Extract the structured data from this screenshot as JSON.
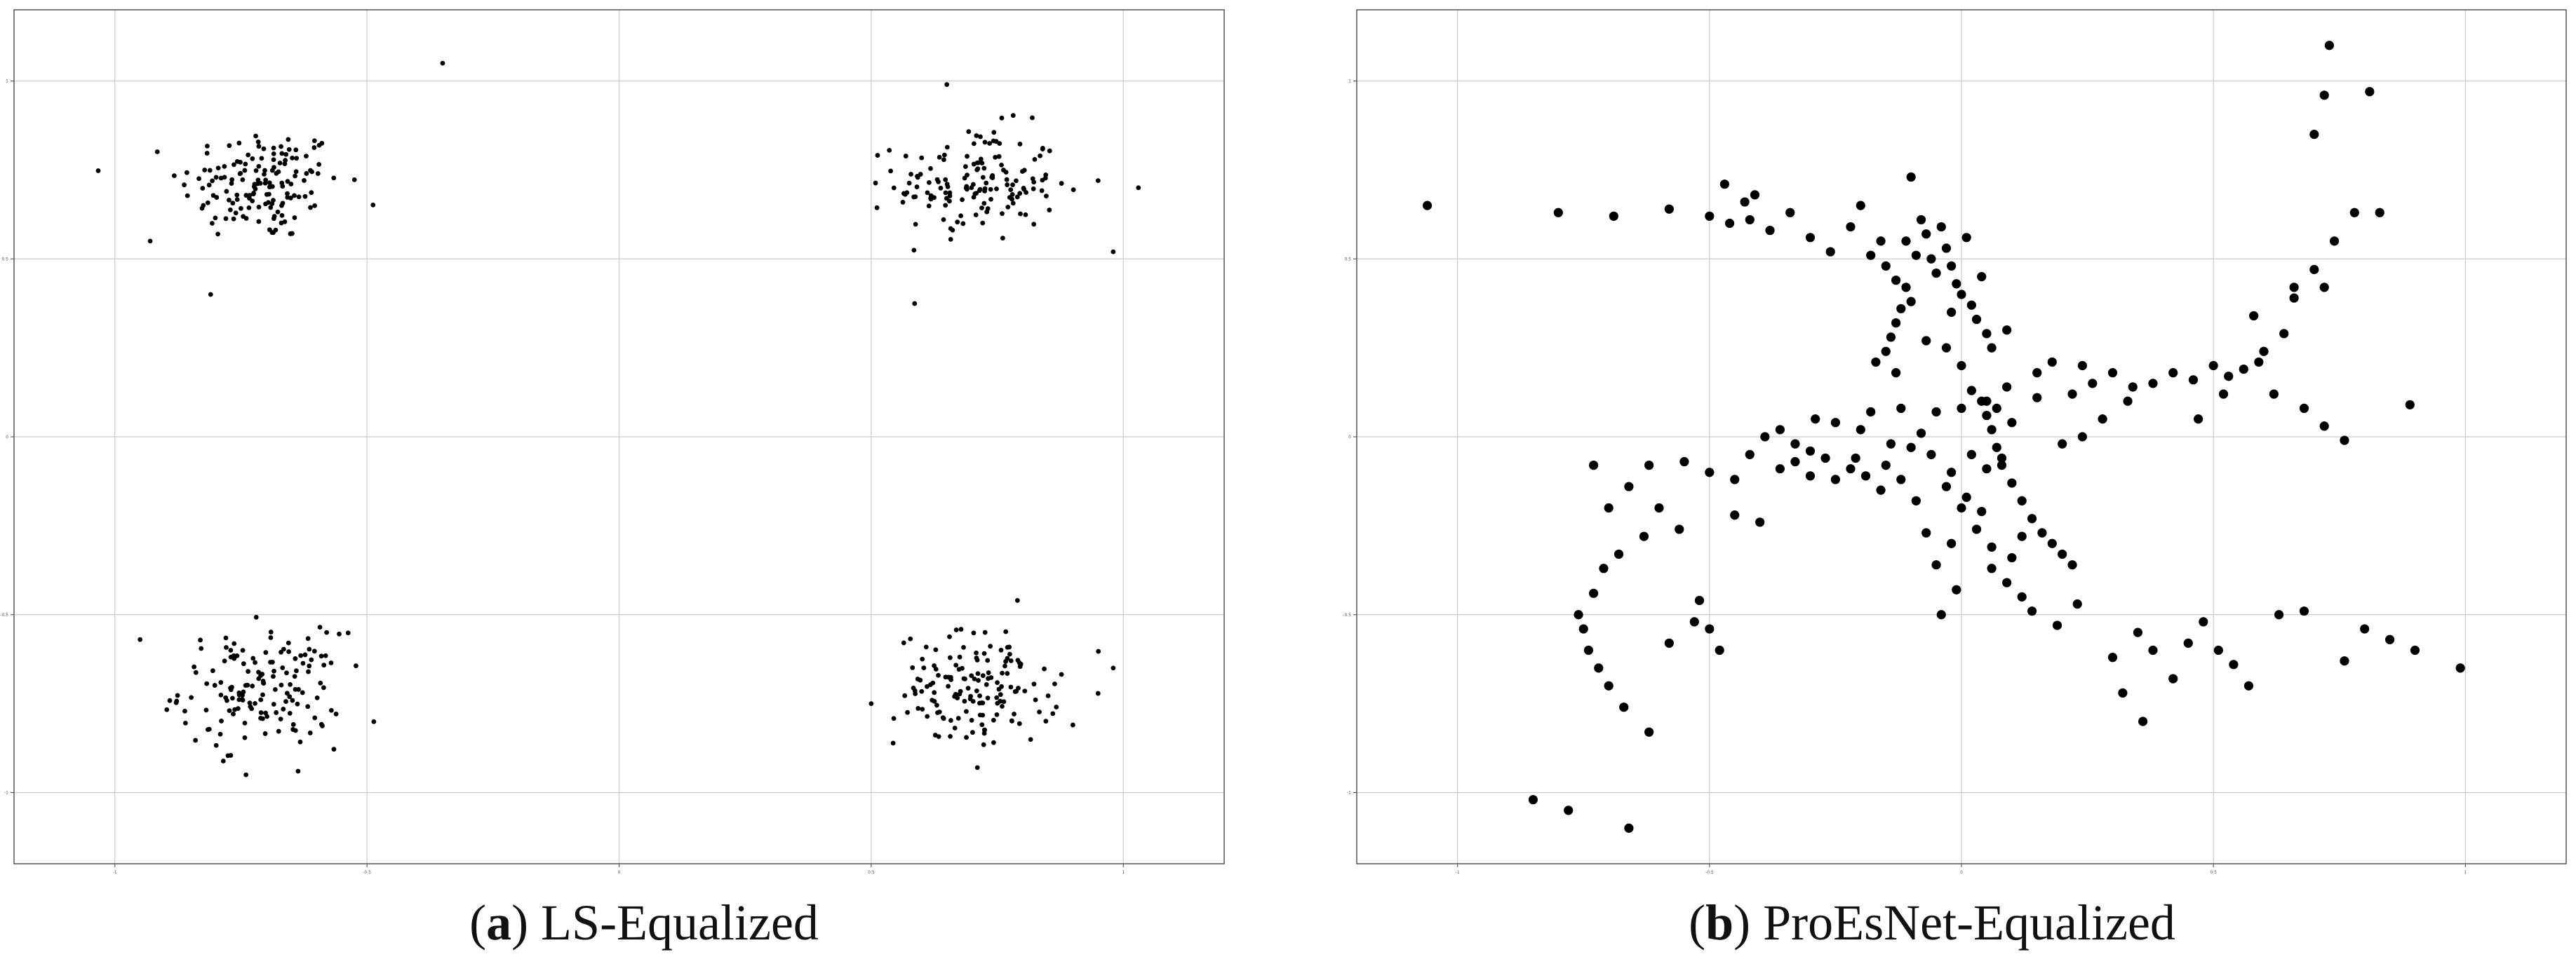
{
  "panels": [
    {
      "letter": "a",
      "title": "LS-Equalized"
    },
    {
      "letter": "b",
      "title": "ProEsNet-Equalized"
    }
  ],
  "chart_data": [
    {
      "type": "scatter",
      "title": "LS-Equalized",
      "xlabel": "",
      "ylabel": "",
      "xlim": [
        -1.2,
        1.2
      ],
      "ylim": [
        -1.2,
        1.2
      ],
      "grid": true,
      "marker_color": "#000000",
      "xticks": [
        -1,
        -0.5,
        0,
        0.5,
        1
      ],
      "yticks": [
        -1,
        -0.5,
        0,
        0.5,
        1
      ],
      "clusters": [
        {
          "center": [
            -0.71,
            0.71
          ],
          "spread": 0.08,
          "count": 150
        },
        {
          "center": [
            0.71,
            0.71
          ],
          "spread": 0.08,
          "count": 150
        },
        {
          "center": [
            -0.71,
            -0.71
          ],
          "spread": 0.08,
          "count": 150
        },
        {
          "center": [
            0.71,
            -0.71
          ],
          "spread": 0.08,
          "count": 150
        }
      ],
      "outliers": [
        [
          -0.35,
          1.05
        ],
        [
          -0.62,
          0.74
        ],
        [
          -0.93,
          0.55
        ],
        [
          -0.81,
          0.4
        ],
        [
          0.65,
          0.99
        ],
        [
          0.95,
          0.72
        ],
        [
          1.03,
          0.7
        ],
        [
          0.98,
          0.52
        ],
        [
          -0.95,
          -0.57
        ],
        [
          -0.74,
          -0.95
        ],
        [
          -0.58,
          -0.55
        ],
        [
          0.5,
          -0.75
        ],
        [
          0.79,
          -0.46
        ],
        [
          0.98,
          -0.65
        ],
        [
          0.9,
          -0.81
        ]
      ]
    },
    {
      "type": "scatter",
      "title": "ProEsNet-Equalized",
      "xlabel": "",
      "ylabel": "",
      "xlim": [
        -1.2,
        1.2
      ],
      "ylim": [
        -1.2,
        1.2
      ],
      "grid": true,
      "marker_color": "#000000",
      "xticks": [
        -1,
        -0.5,
        0,
        0.5,
        1
      ],
      "yticks": [
        -1,
        -0.5,
        0,
        0.5,
        1
      ],
      "points": [
        [
          -1.06,
          0.65
        ],
        [
          -0.8,
          0.63
        ],
        [
          -0.69,
          0.62
        ],
        [
          -0.58,
          0.64
        ],
        [
          -0.5,
          0.62
        ],
        [
          -0.46,
          0.6
        ],
        [
          -0.42,
          0.61
        ],
        [
          -0.38,
          0.58
        ],
        [
          -0.34,
          0.63
        ],
        [
          -0.3,
          0.56
        ],
        [
          -0.26,
          0.52
        ],
        [
          -0.22,
          0.59
        ],
        [
          -0.18,
          0.51
        ],
        [
          -0.15,
          0.48
        ],
        [
          -0.13,
          0.44
        ],
        [
          -0.11,
          0.42
        ],
        [
          -0.1,
          0.38
        ],
        [
          -0.12,
          0.36
        ],
        [
          -0.13,
          0.32
        ],
        [
          -0.14,
          0.28
        ],
        [
          -0.15,
          0.24
        ],
        [
          -0.17,
          0.21
        ],
        [
          -0.13,
          0.18
        ],
        [
          -0.11,
          0.55
        ],
        [
          -0.08,
          0.61
        ],
        [
          -0.06,
          0.5
        ],
        [
          -0.05,
          0.46
        ],
        [
          -0.1,
          0.73
        ],
        [
          -0.07,
          0.57
        ],
        [
          -0.04,
          0.59
        ],
        [
          -0.03,
          0.53
        ],
        [
          -0.02,
          0.48
        ],
        [
          -0.01,
          0.43
        ],
        [
          0.0,
          0.4
        ],
        [
          0.02,
          0.37
        ],
        [
          0.03,
          0.33
        ],
        [
          0.05,
          0.29
        ],
        [
          0.06,
          0.25
        ],
        [
          -0.03,
          0.25
        ],
        [
          -0.07,
          0.27
        ],
        [
          0.0,
          0.2
        ],
        [
          0.02,
          0.13
        ],
        [
          0.04,
          0.1
        ],
        [
          0.05,
          0.06
        ],
        [
          0.06,
          0.02
        ],
        [
          0.07,
          -0.03
        ],
        [
          0.08,
          -0.08
        ],
        [
          0.1,
          -0.13
        ],
        [
          0.12,
          -0.18
        ],
        [
          0.14,
          -0.23
        ],
        [
          0.16,
          -0.27
        ],
        [
          0.18,
          -0.3
        ],
        [
          0.2,
          -0.33
        ],
        [
          0.22,
          -0.36
        ],
        [
          0.06,
          -0.37
        ],
        [
          0.09,
          -0.41
        ],
        [
          0.12,
          -0.45
        ],
        [
          0.14,
          -0.49
        ],
        [
          0.19,
          -0.53
        ],
        [
          0.23,
          -0.47
        ],
        [
          -0.04,
          -0.5
        ],
        [
          -0.01,
          -0.43
        ],
        [
          -0.05,
          -0.36
        ],
        [
          -0.07,
          -0.27
        ],
        [
          -0.09,
          -0.18
        ],
        [
          -0.12,
          -0.12
        ],
        [
          -0.15,
          -0.08
        ],
        [
          -0.1,
          -0.03
        ],
        [
          -0.06,
          -0.05
        ],
        [
          -0.02,
          -0.1
        ],
        [
          0.0,
          -0.2
        ],
        [
          0.03,
          -0.26
        ],
        [
          0.06,
          -0.31
        ],
        [
          0.1,
          -0.34
        ],
        [
          -0.02,
          -0.3
        ],
        [
          0.02,
          -0.05
        ],
        [
          0.05,
          -0.09
        ],
        [
          0.08,
          -0.06
        ],
        [
          0.07,
          0.08
        ],
        [
          0.09,
          0.14
        ],
        [
          -0.55,
          -0.07
        ],
        [
          -0.5,
          -0.1
        ],
        [
          -0.45,
          -0.12
        ],
        [
          -0.42,
          -0.05
        ],
        [
          -0.39,
          0.0
        ],
        [
          -0.36,
          -0.09
        ],
        [
          -0.33,
          -0.07
        ],
        [
          -0.3,
          -0.11
        ],
        [
          -0.27,
          -0.06
        ],
        [
          -0.25,
          -0.12
        ],
        [
          -0.22,
          -0.09
        ],
        [
          -0.19,
          -0.11
        ],
        [
          -0.16,
          -0.15
        ],
        [
          -0.36,
          0.02
        ],
        [
          -0.33,
          -0.02
        ],
        [
          -0.62,
          -0.08
        ],
        [
          -0.66,
          -0.14
        ],
        [
          -0.7,
          -0.2
        ],
        [
          -0.6,
          -0.2
        ],
        [
          -0.56,
          -0.26
        ],
        [
          -0.63,
          -0.28
        ],
        [
          -0.68,
          -0.33
        ],
        [
          -0.71,
          -0.37
        ],
        [
          -0.73,
          -0.44
        ],
        [
          -0.76,
          -0.5
        ],
        [
          -0.75,
          -0.54
        ],
        [
          -0.74,
          -0.6
        ],
        [
          -0.72,
          -0.65
        ],
        [
          -0.7,
          -0.7
        ],
        [
          -0.67,
          -0.76
        ],
        [
          -0.62,
          -0.83
        ],
        [
          -0.66,
          -1.1
        ],
        [
          -0.52,
          -0.46
        ],
        [
          -0.48,
          -0.6
        ],
        [
          -0.5,
          -0.54
        ],
        [
          -0.58,
          -0.58
        ],
        [
          -0.53,
          -0.52
        ],
        [
          -0.45,
          -0.22
        ],
        [
          -0.4,
          -0.24
        ],
        [
          -0.73,
          -0.08
        ],
        [
          -0.2,
          0.02
        ],
        [
          -0.25,
          0.04
        ],
        [
          -0.29,
          0.05
        ],
        [
          -0.18,
          0.07
        ],
        [
          -0.12,
          0.08
        ],
        [
          -0.05,
          0.07
        ],
        [
          0.0,
          0.08
        ],
        [
          0.05,
          0.1
        ],
        [
          0.1,
          0.04
        ],
        [
          0.15,
          0.11
        ],
        [
          0.22,
          0.12
        ],
        [
          0.2,
          -0.02
        ],
        [
          0.24,
          0.0
        ],
        [
          0.28,
          0.05
        ],
        [
          0.33,
          0.1
        ],
        [
          0.38,
          0.15
        ],
        [
          0.42,
          0.18
        ],
        [
          0.46,
          0.16
        ],
        [
          0.5,
          0.2
        ],
        [
          0.53,
          0.17
        ],
        [
          0.56,
          0.19
        ],
        [
          0.59,
          0.21
        ],
        [
          0.52,
          0.12
        ],
        [
          0.47,
          0.05
        ],
        [
          0.62,
          0.12
        ],
        [
          0.6,
          0.24
        ],
        [
          0.64,
          0.29
        ],
        [
          0.58,
          0.34
        ],
        [
          0.66,
          0.39
        ],
        [
          0.7,
          0.47
        ],
        [
          0.72,
          0.42
        ],
        [
          0.74,
          0.55
        ],
        [
          0.78,
          0.63
        ],
        [
          0.83,
          0.63
        ],
        [
          0.7,
          0.85
        ],
        [
          0.72,
          0.96
        ],
        [
          0.73,
          1.1
        ],
        [
          0.81,
          0.97
        ],
        [
          0.66,
          0.42
        ],
        [
          0.68,
          0.08
        ],
        [
          0.72,
          0.03
        ],
        [
          0.76,
          -0.01
        ],
        [
          0.89,
          0.09
        ],
        [
          0.35,
          -0.55
        ],
        [
          0.38,
          -0.6
        ],
        [
          0.42,
          -0.68
        ],
        [
          0.45,
          -0.58
        ],
        [
          0.48,
          -0.52
        ],
        [
          0.3,
          -0.62
        ],
        [
          0.32,
          -0.72
        ],
        [
          0.36,
          -0.8
        ],
        [
          0.51,
          -0.6
        ],
        [
          0.54,
          -0.64
        ],
        [
          0.57,
          -0.7
        ],
        [
          0.63,
          -0.5
        ],
        [
          0.68,
          -0.49
        ],
        [
          0.85,
          -0.57
        ],
        [
          0.9,
          -0.6
        ],
        [
          0.99,
          -0.65
        ],
        [
          0.76,
          -0.63
        ],
        [
          0.8,
          -0.54
        ],
        [
          0.26,
          0.15
        ],
        [
          0.3,
          0.18
        ],
        [
          0.34,
          0.14
        ],
        [
          0.24,
          0.2
        ],
        [
          0.15,
          0.18
        ],
        [
          0.18,
          0.21
        ],
        [
          -0.3,
          -0.04
        ],
        [
          -0.21,
          -0.06
        ],
        [
          -0.14,
          -0.02
        ],
        [
          -0.08,
          0.01
        ],
        [
          -0.03,
          -0.14
        ],
        [
          0.01,
          -0.17
        ],
        [
          0.04,
          -0.21
        ],
        [
          0.12,
          -0.28
        ],
        [
          -0.43,
          0.66
        ],
        [
          -0.41,
          0.68
        ],
        [
          -0.47,
          0.71
        ],
        [
          -0.2,
          0.65
        ],
        [
          -0.16,
          0.55
        ],
        [
          -0.09,
          0.51
        ],
        [
          -0.02,
          0.35
        ],
        [
          0.04,
          0.45
        ],
        [
          0.01,
          0.56
        ],
        [
          0.09,
          0.3
        ],
        [
          -0.78,
          -1.05
        ],
        [
          -0.85,
          -1.02
        ]
      ]
    }
  ]
}
